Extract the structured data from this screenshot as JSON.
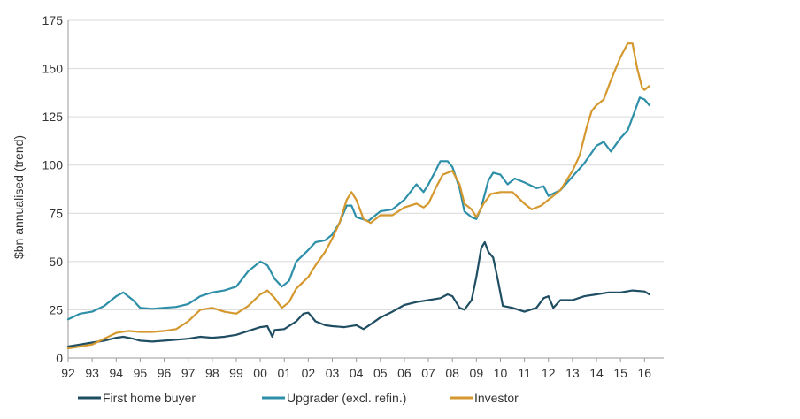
{
  "chart_data": {
    "type": "line",
    "ylabel": "$bn annualised (trend)",
    "xlabel": "",
    "ylim": [
      0,
      175
    ],
    "yticks": [
      0,
      25,
      50,
      75,
      100,
      125,
      150,
      175
    ],
    "xlim": [
      1992,
      2016.8
    ],
    "xticks": [
      {
        "value": 1992,
        "label": "92"
      },
      {
        "value": 1993,
        "label": "93"
      },
      {
        "value": 1994,
        "label": "94"
      },
      {
        "value": 1995,
        "label": "95"
      },
      {
        "value": 1996,
        "label": "96"
      },
      {
        "value": 1997,
        "label": "97"
      },
      {
        "value": 1998,
        "label": "98"
      },
      {
        "value": 1999,
        "label": "99"
      },
      {
        "value": 2000,
        "label": "00"
      },
      {
        "value": 2001,
        "label": "01"
      },
      {
        "value": 2002,
        "label": "02"
      },
      {
        "value": 2003,
        "label": "03"
      },
      {
        "value": 2004,
        "label": "04"
      },
      {
        "value": 2005,
        "label": "05"
      },
      {
        "value": 2006,
        "label": "06"
      },
      {
        "value": 2007,
        "label": "07"
      },
      {
        "value": 2008,
        "label": "08"
      },
      {
        "value": 2009,
        "label": "09"
      },
      {
        "value": 2010,
        "label": "10"
      },
      {
        "value": 2011,
        "label": "11"
      },
      {
        "value": 2012,
        "label": "12"
      },
      {
        "value": 2013,
        "label": "13"
      },
      {
        "value": 2014,
        "label": "14"
      },
      {
        "value": 2015,
        "label": "15"
      },
      {
        "value": 2016,
        "label": "16"
      }
    ],
    "grid": true,
    "legend_position": "bottom",
    "series": [
      {
        "name": "First home buyer",
        "color": "#1f4e63",
        "points": [
          [
            1992.0,
            6
          ],
          [
            1992.5,
            7
          ],
          [
            1993.0,
            8
          ],
          [
            1993.5,
            9
          ],
          [
            1994.0,
            10.5
          ],
          [
            1994.3,
            11
          ],
          [
            1994.7,
            10
          ],
          [
            1995.0,
            9
          ],
          [
            1995.5,
            8.5
          ],
          [
            1996.0,
            9
          ],
          [
            1996.5,
            9.5
          ],
          [
            1997.0,
            10
          ],
          [
            1997.5,
            11
          ],
          [
            1998.0,
            10.5
          ],
          [
            1998.5,
            11
          ],
          [
            1999.0,
            12
          ],
          [
            1999.5,
            14
          ],
          [
            2000.0,
            16
          ],
          [
            2000.3,
            16.5
          ],
          [
            2000.5,
            11
          ],
          [
            2000.6,
            14.5
          ],
          [
            2001.0,
            15
          ],
          [
            2001.5,
            19
          ],
          [
            2001.8,
            23
          ],
          [
            2002.0,
            23.5
          ],
          [
            2002.3,
            19
          ],
          [
            2002.7,
            17
          ],
          [
            2003.0,
            16.5
          ],
          [
            2003.5,
            16
          ],
          [
            2004.0,
            17
          ],
          [
            2004.3,
            15
          ],
          [
            2004.6,
            17.5
          ],
          [
            2005.0,
            21
          ],
          [
            2005.5,
            24
          ],
          [
            2006.0,
            27.5
          ],
          [
            2006.5,
            29
          ],
          [
            2007.0,
            30
          ],
          [
            2007.5,
            31
          ],
          [
            2007.8,
            33
          ],
          [
            2008.0,
            32
          ],
          [
            2008.3,
            26
          ],
          [
            2008.5,
            25
          ],
          [
            2008.8,
            30
          ],
          [
            2009.0,
            42
          ],
          [
            2009.2,
            57
          ],
          [
            2009.35,
            60
          ],
          [
            2009.5,
            55
          ],
          [
            2009.7,
            52
          ],
          [
            2009.9,
            40
          ],
          [
            2010.1,
            27
          ],
          [
            2010.5,
            26
          ],
          [
            2011.0,
            24
          ],
          [
            2011.5,
            26
          ],
          [
            2011.8,
            31
          ],
          [
            2012.0,
            32
          ],
          [
            2012.2,
            26
          ],
          [
            2012.5,
            30
          ],
          [
            2013.0,
            30
          ],
          [
            2013.5,
            32
          ],
          [
            2014.0,
            33
          ],
          [
            2014.5,
            34
          ],
          [
            2015.0,
            34
          ],
          [
            2015.5,
            35
          ],
          [
            2016.0,
            34.5
          ],
          [
            2016.2,
            33
          ]
        ]
      },
      {
        "name": "Upgrader (excl. refin.)",
        "color": "#2e8fa8",
        "points": [
          [
            1992.0,
            20
          ],
          [
            1992.5,
            23
          ],
          [
            1993.0,
            24
          ],
          [
            1993.5,
            27
          ],
          [
            1994.0,
            32
          ],
          [
            1994.3,
            34
          ],
          [
            1994.7,
            30
          ],
          [
            1995.0,
            26
          ],
          [
            1995.5,
            25.5
          ],
          [
            1996.0,
            26
          ],
          [
            1996.5,
            26.5
          ],
          [
            1997.0,
            28
          ],
          [
            1997.5,
            32
          ],
          [
            1998.0,
            34
          ],
          [
            1998.5,
            35
          ],
          [
            1999.0,
            37
          ],
          [
            1999.5,
            45
          ],
          [
            2000.0,
            50
          ],
          [
            2000.3,
            48
          ],
          [
            2000.6,
            41
          ],
          [
            2000.9,
            37
          ],
          [
            2001.2,
            40
          ],
          [
            2001.5,
            50
          ],
          [
            2002.0,
            56
          ],
          [
            2002.3,
            60
          ],
          [
            2002.7,
            61
          ],
          [
            2003.0,
            64
          ],
          [
            2003.3,
            70
          ],
          [
            2003.6,
            79
          ],
          [
            2003.8,
            79
          ],
          [
            2004.0,
            73
          ],
          [
            2004.5,
            71
          ],
          [
            2005.0,
            76
          ],
          [
            2005.5,
            77
          ],
          [
            2006.0,
            82
          ],
          [
            2006.5,
            90
          ],
          [
            2006.8,
            86
          ],
          [
            2007.0,
            90
          ],
          [
            2007.3,
            97
          ],
          [
            2007.5,
            102
          ],
          [
            2007.8,
            102
          ],
          [
            2008.0,
            99
          ],
          [
            2008.3,
            88
          ],
          [
            2008.5,
            76
          ],
          [
            2008.8,
            73
          ],
          [
            2009.0,
            72
          ],
          [
            2009.2,
            78
          ],
          [
            2009.5,
            92
          ],
          [
            2009.7,
            96
          ],
          [
            2010.0,
            95
          ],
          [
            2010.3,
            90
          ],
          [
            2010.6,
            93
          ],
          [
            2011.0,
            91
          ],
          [
            2011.5,
            88
          ],
          [
            2011.8,
            89
          ],
          [
            2012.0,
            84
          ],
          [
            2012.5,
            87
          ],
          [
            2013.0,
            94
          ],
          [
            2013.5,
            101
          ],
          [
            2014.0,
            110
          ],
          [
            2014.3,
            112
          ],
          [
            2014.6,
            107
          ],
          [
            2015.0,
            114
          ],
          [
            2015.3,
            118
          ],
          [
            2015.6,
            128
          ],
          [
            2015.8,
            135
          ],
          [
            2016.0,
            134
          ],
          [
            2016.2,
            131
          ]
        ]
      },
      {
        "name": "Investor",
        "color": "#d4982f",
        "points": [
          [
            1992.0,
            5
          ],
          [
            1992.5,
            6
          ],
          [
            1993.0,
            7
          ],
          [
            1993.5,
            10
          ],
          [
            1994.0,
            13
          ],
          [
            1994.5,
            14
          ],
          [
            1995.0,
            13.5
          ],
          [
            1995.5,
            13.5
          ],
          [
            1996.0,
            14
          ],
          [
            1996.5,
            15
          ],
          [
            1997.0,
            19
          ],
          [
            1997.5,
            25
          ],
          [
            1998.0,
            26
          ],
          [
            1998.5,
            24
          ],
          [
            1999.0,
            23
          ],
          [
            1999.5,
            27
          ],
          [
            2000.0,
            33
          ],
          [
            2000.3,
            35
          ],
          [
            2000.6,
            31
          ],
          [
            2000.9,
            26
          ],
          [
            2001.2,
            29
          ],
          [
            2001.5,
            36
          ],
          [
            2002.0,
            42
          ],
          [
            2002.3,
            48
          ],
          [
            2002.7,
            55
          ],
          [
            2003.0,
            62
          ],
          [
            2003.3,
            70
          ],
          [
            2003.6,
            82
          ],
          [
            2003.8,
            86
          ],
          [
            2004.0,
            82
          ],
          [
            2004.3,
            72
          ],
          [
            2004.6,
            70
          ],
          [
            2005.0,
            74
          ],
          [
            2005.5,
            74
          ],
          [
            2006.0,
            78
          ],
          [
            2006.5,
            80
          ],
          [
            2006.8,
            78
          ],
          [
            2007.0,
            80
          ],
          [
            2007.3,
            88
          ],
          [
            2007.6,
            95
          ],
          [
            2008.0,
            97
          ],
          [
            2008.3,
            90
          ],
          [
            2008.5,
            80
          ],
          [
            2008.8,
            77
          ],
          [
            2009.0,
            73
          ],
          [
            2009.3,
            80
          ],
          [
            2009.6,
            85
          ],
          [
            2010.0,
            86
          ],
          [
            2010.5,
            86
          ],
          [
            2011.0,
            80
          ],
          [
            2011.3,
            77
          ],
          [
            2011.7,
            79
          ],
          [
            2012.0,
            82
          ],
          [
            2012.5,
            87
          ],
          [
            2013.0,
            97
          ],
          [
            2013.3,
            105
          ],
          [
            2013.6,
            120
          ],
          [
            2013.8,
            128
          ],
          [
            2014.0,
            131
          ],
          [
            2014.3,
            134
          ],
          [
            2014.6,
            144
          ],
          [
            2015.0,
            156
          ],
          [
            2015.3,
            163
          ],
          [
            2015.5,
            163
          ],
          [
            2015.7,
            150
          ],
          [
            2015.9,
            140
          ],
          [
            2016.0,
            139
          ],
          [
            2016.2,
            141
          ]
        ]
      }
    ]
  }
}
